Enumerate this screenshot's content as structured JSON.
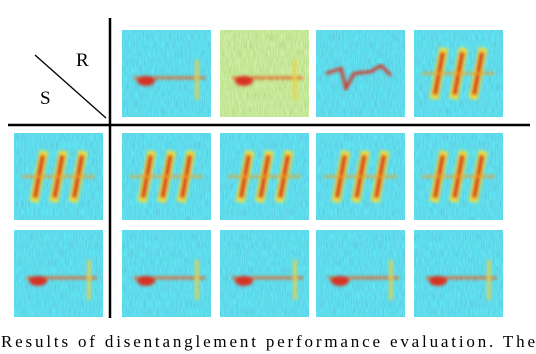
{
  "figure": {
    "col_label": "R",
    "row_label": "S"
  },
  "caption": "Results of disentanglement performance evaluation. The"
}
